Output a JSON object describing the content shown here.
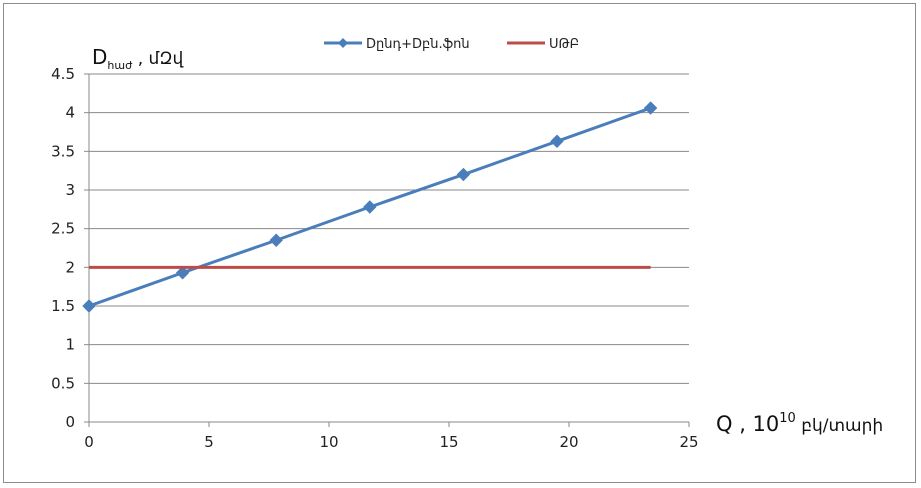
{
  "chart_data": {
    "type": "line",
    "title": "",
    "y_title": {
      "main": "D",
      "sub": "հաժ",
      "rest": " , մԶվ"
    },
    "x_title": {
      "main": "Q , 10",
      "sup": "10",
      "rest": " բկ/տարի"
    },
    "xlim": [
      0,
      25
    ],
    "ylim": [
      0,
      4.5
    ],
    "x_ticks": [
      0,
      5,
      10,
      15,
      20,
      25
    ],
    "y_ticks": [
      0,
      0.5,
      1,
      1.5,
      2,
      2.5,
      3,
      3.5,
      4,
      4.5
    ],
    "x_tick_labels": [
      "0",
      "5",
      "10",
      "15",
      "20",
      "25"
    ],
    "y_tick_labels": [
      "0",
      "0.5",
      "1",
      "1.5",
      "2",
      "2.5",
      "3",
      "3.5",
      "4",
      "4.5"
    ],
    "grid": {
      "horizontal": true,
      "vertical": false
    },
    "legend_position": "top-center",
    "series": [
      {
        "name": "Dընդ+Dբն.ֆոն",
        "color": "#4a7ebb",
        "marker": "diamond",
        "x": [
          0,
          3.9,
          7.8,
          11.7,
          15.6,
          19.5,
          23.4
        ],
        "y": [
          1.5,
          1.93,
          2.35,
          2.78,
          3.2,
          3.63,
          4.06
        ]
      },
      {
        "name": "ՍԹԲ",
        "color": "#be4b48",
        "marker": "none",
        "x": [
          0,
          23.4
        ],
        "y": [
          2.0,
          2.0
        ]
      }
    ]
  }
}
